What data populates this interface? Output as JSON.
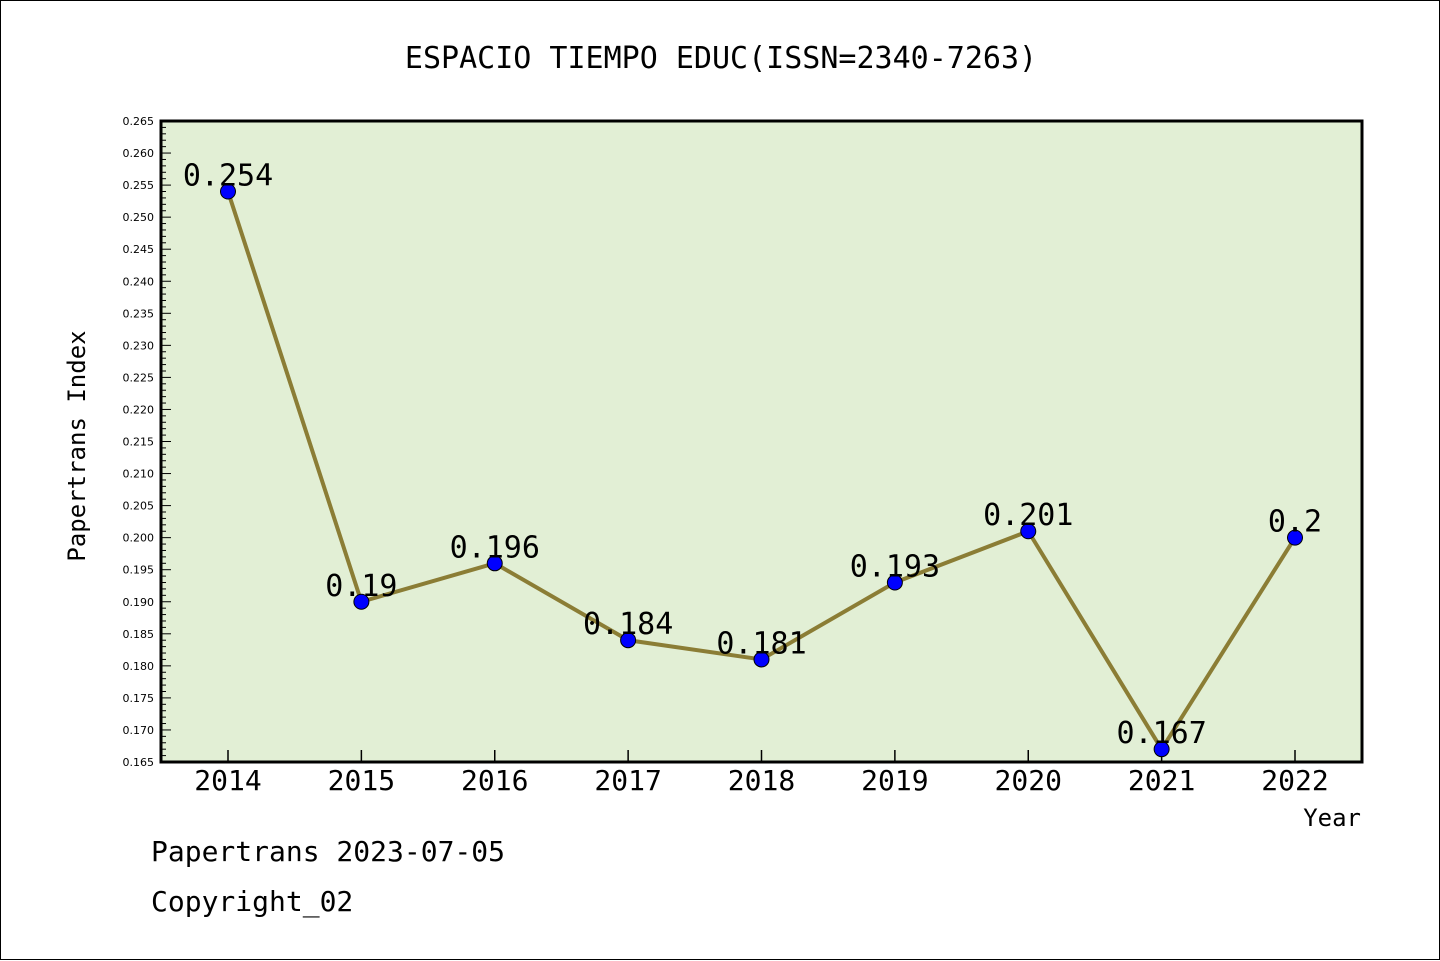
{
  "chart_data": {
    "type": "line",
    "title": "ESPACIO TIEMPO EDUC(ISSN=2340-7263)",
    "xlabel": "Year",
    "ylabel": "Papertrans Index",
    "categories": [
      "2014",
      "2015",
      "2016",
      "2017",
      "2018",
      "2019",
      "2020",
      "2021",
      "2022"
    ],
    "values": [
      0.254,
      0.19,
      0.196,
      0.184,
      0.181,
      0.193,
      0.201,
      0.167,
      0.2
    ],
    "data_labels": [
      "0.254",
      "0.19",
      "0.196",
      "0.184",
      "0.181",
      "0.193",
      "0.201",
      "0.167",
      "0.2"
    ],
    "ylim": [
      0.165,
      0.265
    ],
    "yticks": [
      "0.165",
      "0.170",
      "0.175",
      "0.180",
      "0.185",
      "0.190",
      "0.195",
      "0.200",
      "0.205",
      "0.210",
      "0.215",
      "0.220",
      "0.225",
      "0.230",
      "0.235",
      "0.240",
      "0.245",
      "0.250",
      "0.255",
      "0.260",
      "0.265"
    ],
    "grid": false,
    "colors": {
      "plot_background": "#e2efd5",
      "line": "#8b7d35",
      "marker": "#0000ff",
      "frame": "#000000"
    }
  },
  "footer": {
    "date_line": "Papertrans 2023-07-05",
    "copyright": "Copyright_02"
  }
}
